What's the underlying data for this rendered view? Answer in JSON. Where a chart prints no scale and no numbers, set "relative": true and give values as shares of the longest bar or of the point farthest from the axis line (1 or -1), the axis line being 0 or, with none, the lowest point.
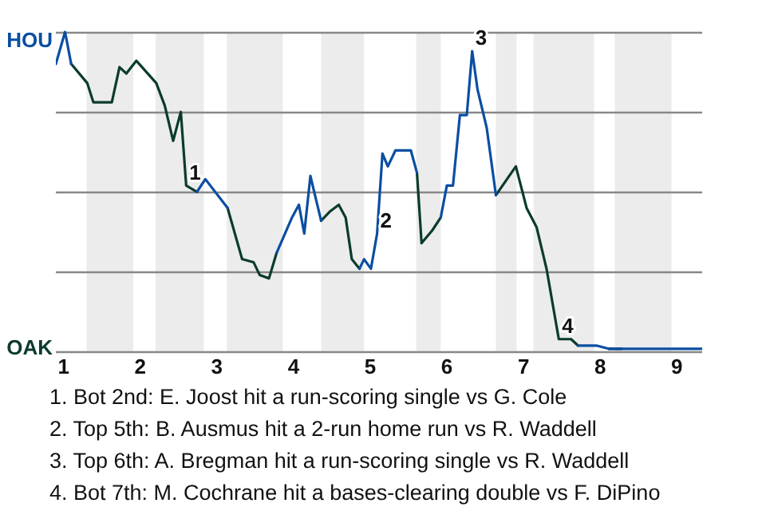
{
  "chart_data": {
    "type": "line",
    "relative": true,
    "x": [
      0.9,
      1.02,
      1.1,
      1.31,
      1.39,
      1.63,
      1.73,
      1.82,
      1.95,
      2.21,
      2.32,
      2.43,
      2.53,
      2.6,
      2.74,
      2.85,
      3.14,
      3.33,
      3.48,
      3.56,
      3.68,
      3.78,
      3.98,
      4.07,
      4.14,
      4.22,
      4.36,
      4.48,
      4.59,
      4.68,
      4.76,
      4.86,
      4.92,
      5.01,
      5.09,
      5.16,
      5.23,
      5.33,
      5.53,
      5.61,
      5.67,
      5.81,
      5.92,
      6.0,
      6.08,
      6.17,
      6.26,
      6.33,
      6.4,
      6.52,
      6.64,
      6.9,
      7.04,
      7.17,
      7.3,
      7.46,
      7.62,
      7.71,
      7.95,
      8.11,
      8.28,
      8.93,
      9.33
    ],
    "series": [
      {
        "color": "#0b4ea2",
        "values": [
          0.9,
          1,
          0.9,
          null,
          null,
          null,
          null,
          null,
          null,
          null,
          null,
          null,
          null,
          null,
          0.5,
          0.54,
          0.45,
          null,
          null,
          null,
          null,
          0.31,
          0.42,
          0.46,
          0.37,
          0.55,
          0.41,
          null,
          null,
          null,
          null,
          0.26,
          0.29,
          0.26,
          0.37,
          0.62,
          0.58,
          0.63,
          0.63,
          0.56,
          null,
          null,
          0.42,
          0.52,
          0.52,
          0.74,
          0.74,
          0.94,
          0.82,
          0.7,
          0.49,
          null,
          null,
          null,
          null,
          null,
          null,
          0.02,
          0.02,
          0.01,
          0.01,
          0.01,
          0.01
        ]
      },
      {
        "color": "#0b3b2e",
        "values": [
          null,
          null,
          0.9,
          0.84,
          0.78,
          0.78,
          0.89,
          0.87,
          0.91,
          0.84,
          0.77,
          0.66,
          0.75,
          0.52,
          0.5,
          null,
          0.45,
          0.29,
          0.28,
          0.24,
          0.23,
          0.31,
          null,
          null,
          null,
          null,
          0.41,
          0.44,
          0.46,
          0.42,
          0.29,
          0.26,
          null,
          null,
          null,
          null,
          null,
          null,
          null,
          0.56,
          0.34,
          0.38,
          0.42,
          null,
          null,
          null,
          null,
          null,
          null,
          null,
          0.49,
          0.58,
          0.45,
          0.39,
          0.26,
          0.04,
          0.04,
          0.02,
          null,
          0.01,
          0.01,
          null,
          null
        ]
      }
    ],
    "xlim": [
      0.9,
      9.33
    ],
    "xticks": [
      1,
      2,
      3,
      4,
      5,
      6,
      7,
      8,
      9
    ],
    "grid": "y",
    "marker": "none",
    "line_style": "solid",
    "bands": [
      {
        "axis": "x",
        "from": 1.3,
        "to": 1.91,
        "color": "#ececec"
      },
      {
        "axis": "x",
        "from": 2.2,
        "to": 2.83,
        "color": "#ececec"
      },
      {
        "axis": "x",
        "from": 3.13,
        "to": 3.86,
        "color": "#ececec"
      },
      {
        "axis": "x",
        "from": 4.36,
        "to": 4.92,
        "color": "#ececec"
      },
      {
        "axis": "x",
        "from": 5.6,
        "to": 5.92,
        "color": "#ececec"
      },
      {
        "axis": "x",
        "from": 6.64,
        "to": 6.91,
        "color": "#ececec"
      },
      {
        "axis": "x",
        "from": 7.13,
        "to": 7.92,
        "color": "#ececec"
      },
      {
        "axis": "x",
        "from": 8.19,
        "to": 8.93,
        "color": "#ececec"
      }
    ],
    "annotations": [
      "HOU",
      "OAK",
      {
        "text": "1",
        "x": 2.6,
        "y": 0.52
      },
      {
        "text": "2",
        "x": 5.09,
        "y": 0.37
      },
      {
        "text": "3",
        "x": 6.33,
        "y": 0.94
      },
      {
        "text": "4",
        "x": 7.46,
        "y": 0.04
      },
      "1. Bot 2nd: E. Joost hit a run-scoring single vs G. Cole",
      "2. Top 5th: B. Ausmus hit a 2-run home run vs R. Waddell",
      "3. Top 6th: A. Bregman hit a run-scoring single vs R. Waddell",
      "4. Bot 7th: M. Cochrane hit a bases-clearing double vs F. DiPino"
    ]
  }
}
